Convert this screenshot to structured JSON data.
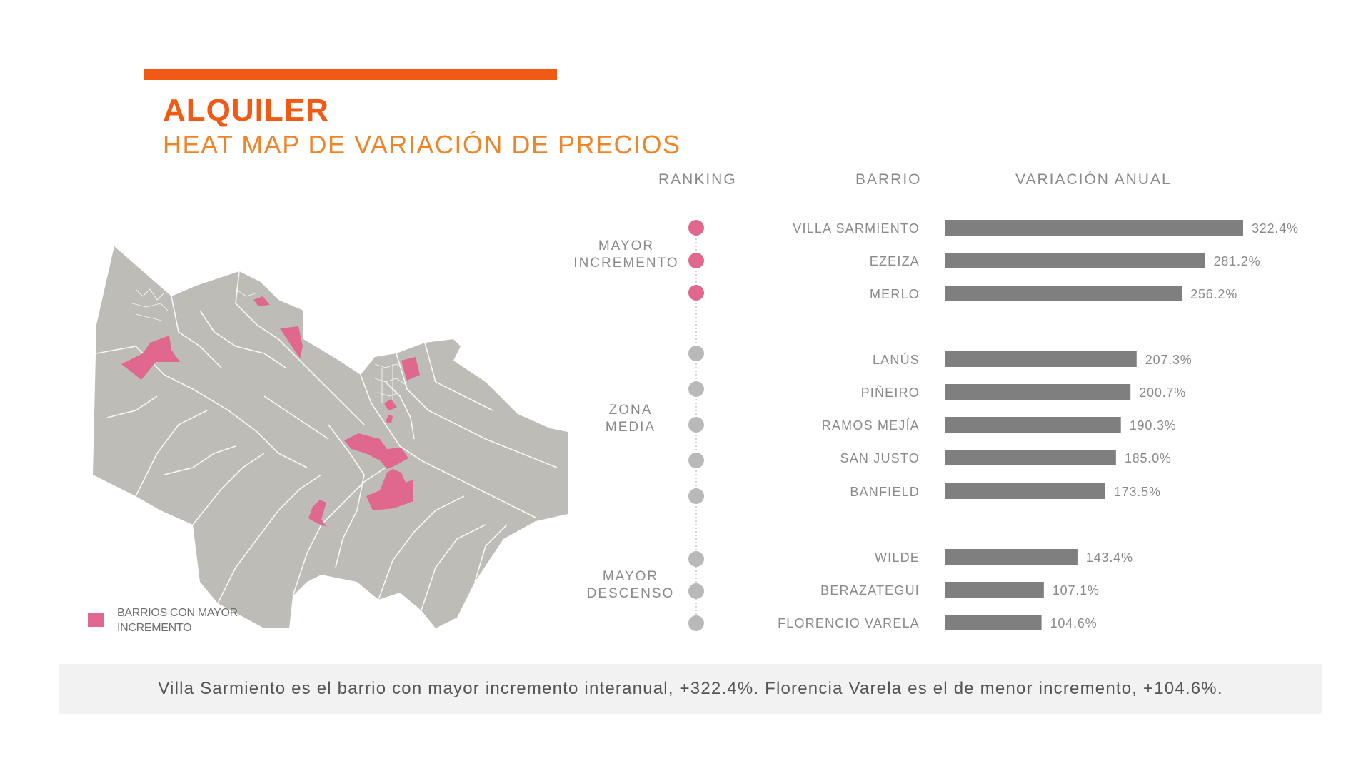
{
  "header": {
    "title": "ALQUILER",
    "subtitle": "HEAT MAP DE VARIACIÓN DE PRECIOS"
  },
  "columns": {
    "ranking": "RANKING",
    "barrio": "BARRIO",
    "variacion": "VARIACIÓN ANUAL"
  },
  "legend": {
    "label": "BARRIOS CON MAYOR INCREMENTO",
    "color": "#e0688f"
  },
  "colors": {
    "accent": "#f05a14",
    "highlight": "#e0688f",
    "bar": "#7f7f7f",
    "neutral_dot": "#b9b9b9",
    "map_fill": "#bdbcb6"
  },
  "footer": {
    "text": "Villa Sarmiento es el barrio con mayor incremento interanual, +322.4%. Florencia Varela es el de menor incremento, +104.6%."
  },
  "chart_data": {
    "type": "bar",
    "orientation": "horizontal",
    "groups": [
      {
        "label": "MAYOR INCREMENTO",
        "items": [
          {
            "name": "VILLA SARMIENTO",
            "value": 322.4,
            "label": "322.4%"
          },
          {
            "name": "EZEIZA",
            "value": 281.2,
            "label": "281.2%"
          },
          {
            "name": "MERLO",
            "value": 256.2,
            "label": "256.2%"
          }
        ]
      },
      {
        "label": "ZONA MEDIA",
        "items": [
          {
            "name": "LANÚS",
            "value": 207.3,
            "label": "207.3%"
          },
          {
            "name": "PIÑEIRO",
            "value": 200.7,
            "label": "200.7%"
          },
          {
            "name": "RAMOS MEJÍA",
            "value": 190.3,
            "label": "190.3%"
          },
          {
            "name": "SAN JUSTO",
            "value": 185.0,
            "label": "185.0%"
          },
          {
            "name": "BANFIELD",
            "value": 173.5,
            "label": "173.5%"
          }
        ]
      },
      {
        "label": "MAYOR DESCENSO",
        "items": [
          {
            "name": "WILDE",
            "value": 143.4,
            "label": "143.4%"
          },
          {
            "name": "BERAZATEGUI",
            "value": 107.1,
            "label": "107.1%"
          },
          {
            "name": "FLORENCIO VARELA",
            "value": 104.6,
            "label": "104.6%"
          }
        ]
      }
    ]
  }
}
